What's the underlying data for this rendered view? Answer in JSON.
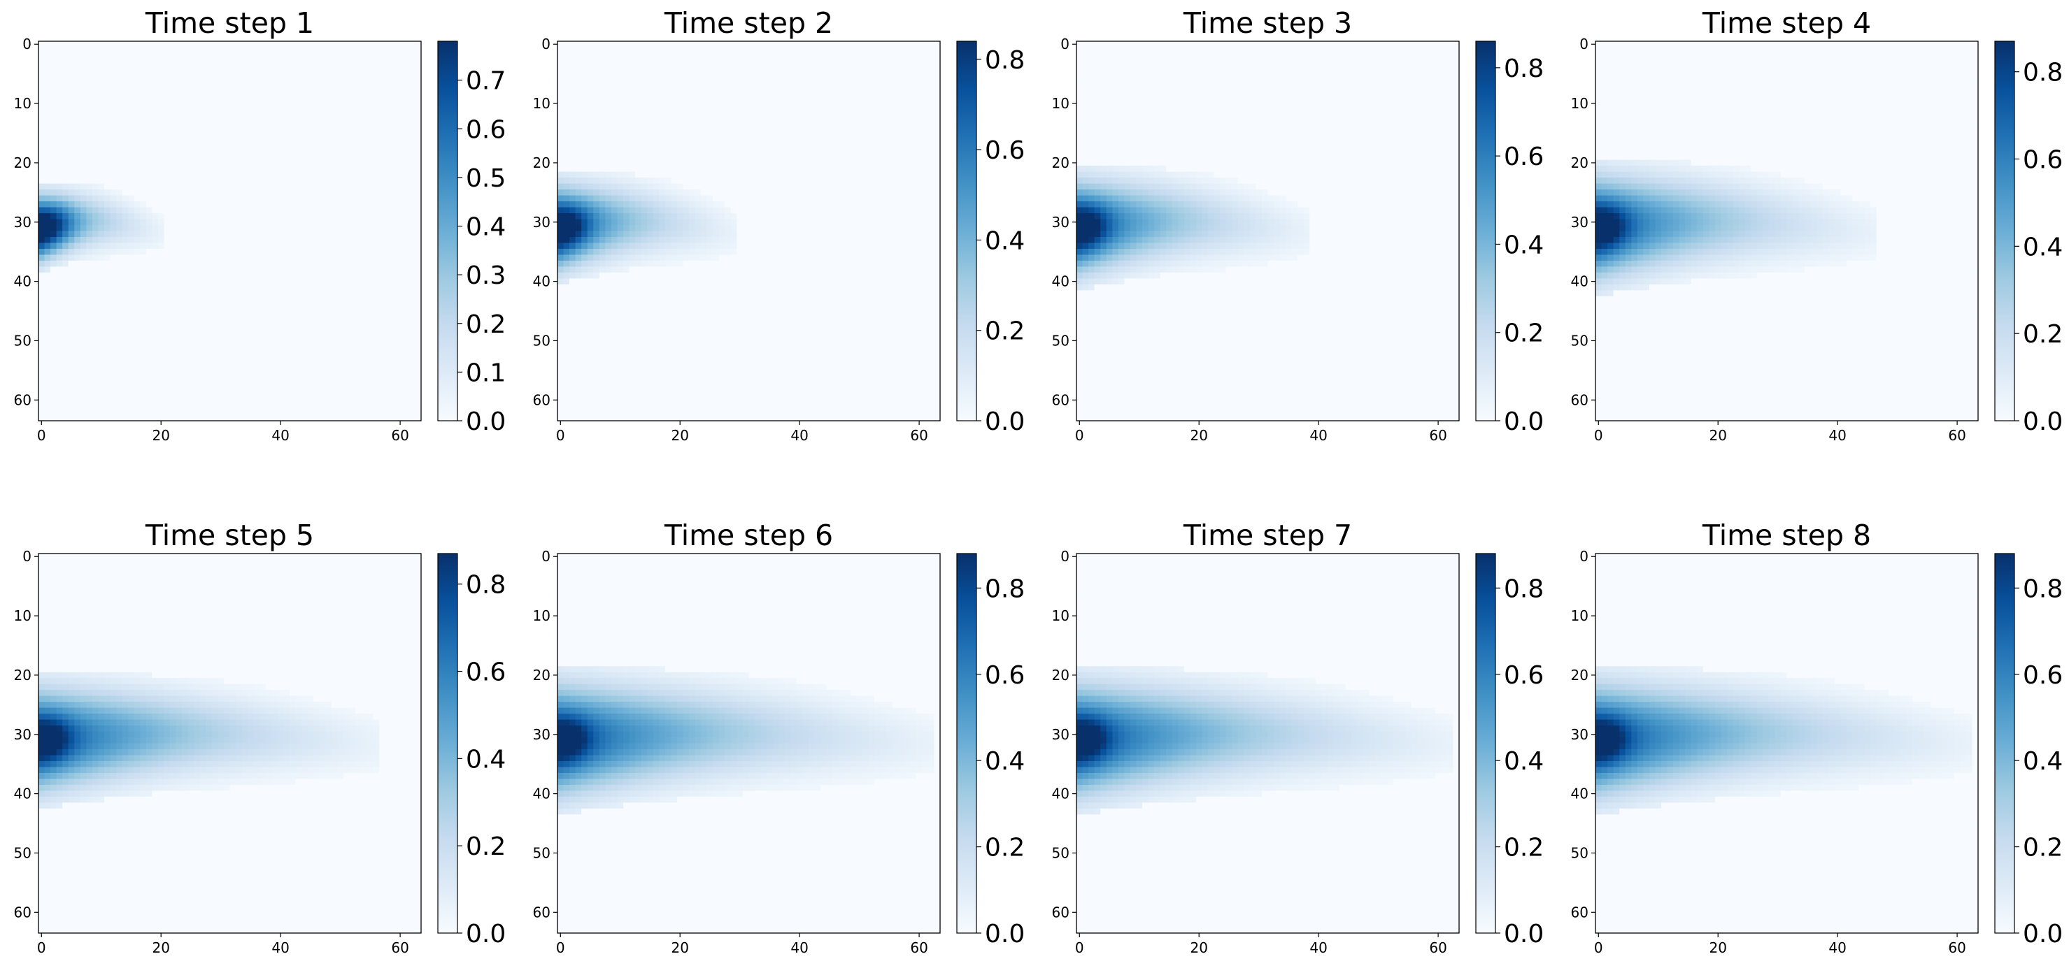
{
  "chart_data": {
    "type": "heatmap",
    "layout": "2x4 grid",
    "colormap": "Blues",
    "grid": false,
    "x_range": [
      0,
      63
    ],
    "y_range": [
      0,
      63
    ],
    "y_inverted": true,
    "x_ticks": [
      0,
      20,
      40,
      60
    ],
    "y_ticks": [
      0,
      10,
      20,
      30,
      40,
      50,
      60
    ],
    "plume": {
      "source": [
        1,
        31
      ],
      "description": "plume emanating from the left edge at row ~31 and spreading rightward over time"
    },
    "panels": [
      {
        "title": "Time step 1",
        "vmax": 0.78,
        "cbar_ticks": [
          "0.0",
          "0.1",
          "0.2",
          "0.3",
          "0.4",
          "0.5",
          "0.6",
          "0.7"
        ],
        "extent_x": 20,
        "halfwidth": 6,
        "peak": 0.78
      },
      {
        "title": "Time step 2",
        "vmax": 0.84,
        "cbar_ticks": [
          "0.0",
          "0.2",
          "0.4",
          "0.6",
          "0.8"
        ],
        "extent_x": 29,
        "halfwidth": 8,
        "peak": 0.84
      },
      {
        "title": "Time step 3",
        "vmax": 0.86,
        "cbar_ticks": [
          "0.0",
          "0.2",
          "0.4",
          "0.6",
          "0.8"
        ],
        "extent_x": 38,
        "halfwidth": 9,
        "peak": 0.86
      },
      {
        "title": "Time step 4",
        "vmax": 0.87,
        "cbar_ticks": [
          "0.0",
          "0.2",
          "0.4",
          "0.6",
          "0.8"
        ],
        "extent_x": 46,
        "halfwidth": 10,
        "peak": 0.87
      },
      {
        "title": "Time step 5",
        "vmax": 0.87,
        "cbar_ticks": [
          "0.0",
          "0.2",
          "0.4",
          "0.6",
          "0.8"
        ],
        "extent_x": 56,
        "halfwidth": 10,
        "peak": 0.87
      },
      {
        "title": "Time step 6",
        "vmax": 0.88,
        "cbar_ticks": [
          "0.0",
          "0.2",
          "0.4",
          "0.6",
          "0.8"
        ],
        "extent_x": 62,
        "halfwidth": 11,
        "peak": 0.88
      },
      {
        "title": "Time step 7",
        "vmax": 0.88,
        "cbar_ticks": [
          "0.0",
          "0.2",
          "0.4",
          "0.6",
          "0.8"
        ],
        "extent_x": 62,
        "halfwidth": 11,
        "peak": 0.88
      },
      {
        "title": "Time step 8",
        "vmax": 0.88,
        "cbar_ticks": [
          "0.0",
          "0.2",
          "0.4",
          "0.6",
          "0.8"
        ],
        "extent_x": 62,
        "halfwidth": 11,
        "peak": 0.88
      }
    ]
  }
}
